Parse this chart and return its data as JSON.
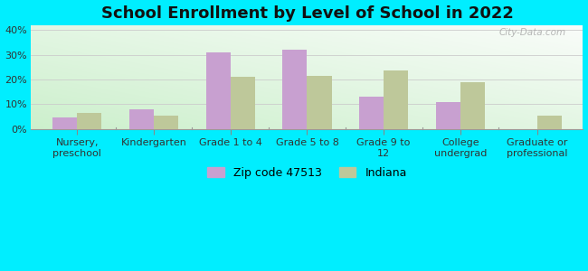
{
  "title": "School Enrollment by Level of School in 2022",
  "categories": [
    "Nursery,\npreschool",
    "Kindergarten",
    "Grade 1 to 4",
    "Grade 5 to 8",
    "Grade 9 to\n12",
    "College\nundergrad",
    "Graduate or\nprofessional"
  ],
  "zip_values": [
    4.5,
    8.0,
    31.0,
    32.0,
    13.0,
    11.0,
    0.0
  ],
  "indiana_values": [
    6.5,
    5.5,
    21.0,
    21.5,
    23.5,
    19.0,
    5.5
  ],
  "zip_color": "#c8a0d0",
  "indiana_color": "#bec89a",
  "background_color": "#00eeff",
  "ylim": [
    0,
    42
  ],
  "yticks": [
    0,
    10,
    20,
    30,
    40
  ],
  "ytick_labels": [
    "0%",
    "10%",
    "20%",
    "30%",
    "40%"
  ],
  "legend_labels": [
    "Zip code 47513",
    "Indiana"
  ],
  "watermark": "City-Data.com",
  "bar_width": 0.32,
  "title_fontsize": 13,
  "tick_fontsize": 8,
  "legend_fontsize": 9
}
